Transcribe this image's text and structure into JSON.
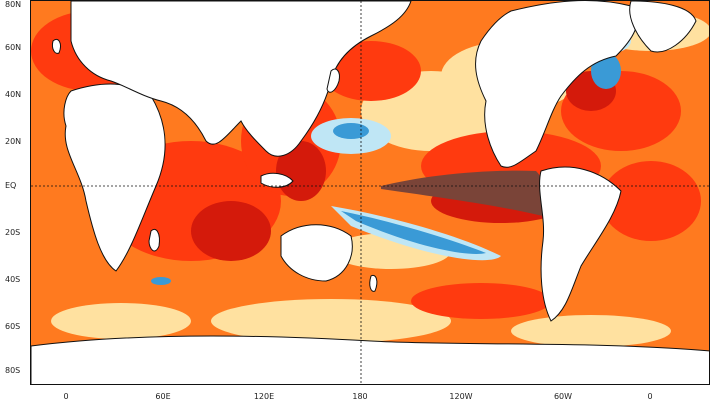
{
  "axes": {
    "lat_labels": [
      "80N",
      "60N",
      "40N",
      "20N",
      "EQ",
      "20S",
      "40S",
      "60S",
      "80S"
    ],
    "lon_labels": [
      "0",
      "60E",
      "120E",
      "180",
      "120W",
      "60W",
      "0"
    ]
  },
  "colors": {
    "ocean_warm_light": "#ffd98a",
    "ocean_warm": "#ff9a2a",
    "ocean_hot": "#ff4a12",
    "ocean_very_hot": "#d91c0c",
    "ocean_extreme": "#7a4438",
    "ocean_cool": "#bfe6f5",
    "ocean_cold": "#3a9ad6",
    "land": "#ffffff",
    "coastline": "#111111"
  }
}
